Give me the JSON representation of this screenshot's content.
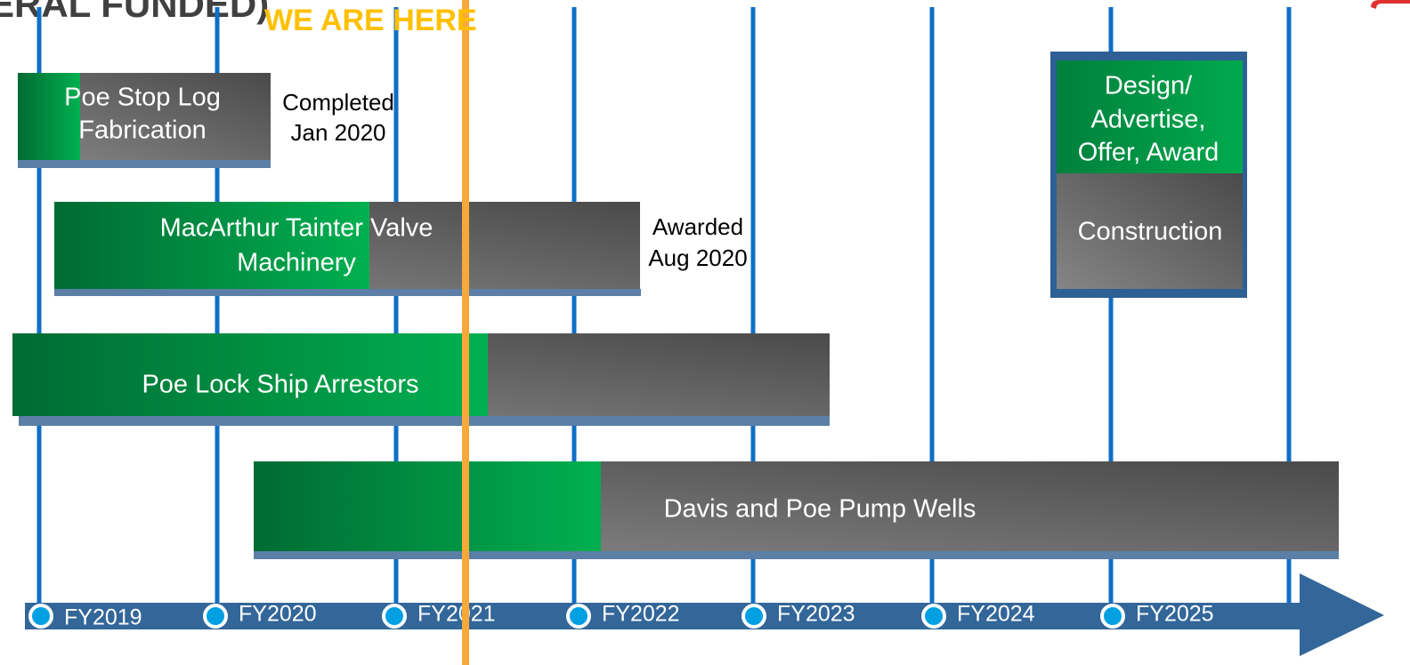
{
  "title_fragment": "ERAL FUNDED)",
  "marker": "WE ARE HERE",
  "tasks": [
    {
      "label_lines": [
        "Poe Stop Log",
        "Fabrication"
      ],
      "note_lines": [
        "Completed",
        "Jan 2020"
      ]
    },
    {
      "label_lines": [
        "MacArthur Tainter Valve",
        "Machinery"
      ],
      "note_lines": [
        "Awarded",
        "Aug 2020"
      ]
    },
    {
      "label_lines": [
        "Poe Lock Ship Arrestors"
      ]
    },
    {
      "label_lines": [
        "Davis and Poe Pump Wells"
      ]
    }
  ],
  "phase_box": {
    "design_lines": [
      "Design/",
      "Advertise,",
      "Offer, Award"
    ],
    "construction": "Construction"
  },
  "fiscal_years": [
    "FY2019",
    "FY2020",
    "FY2021",
    "FY2022",
    "FY2023",
    "FY2024",
    "FY2025"
  ]
}
